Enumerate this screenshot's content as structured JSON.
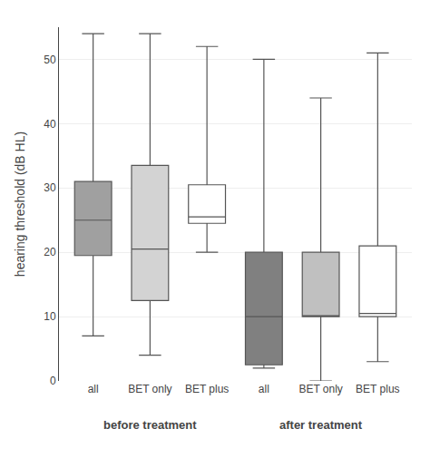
{
  "chart_data": {
    "type": "box",
    "ylabel": "hearing threshold (dB HL)",
    "categories": [
      "all",
      "BET only",
      "BET plus",
      "all",
      "BET only",
      "BET plus"
    ],
    "values": [
      {
        "whislo": 7,
        "q1": 19.5,
        "med": 25,
        "q3": 31,
        "whishi": 54
      },
      {
        "whislo": 4,
        "q1": 12.5,
        "med": 20.5,
        "q3": 33.5,
        "whishi": 54
      },
      {
        "whislo": 20,
        "q1": 24.5,
        "med": 25.5,
        "q3": 30.5,
        "whishi": 52
      },
      {
        "whislo": 2,
        "q1": 2.5,
        "med": 10,
        "q3": 20,
        "whishi": 50
      },
      {
        "whislo": 0,
        "q1": 10,
        "med": 10,
        "q3": 20,
        "whishi": 44
      },
      {
        "whislo": 3,
        "q1": 10,
        "med": 10.5,
        "q3": 21,
        "whishi": 51
      }
    ],
    "colors": [
      "#a0a0a0",
      "#d3d3d3",
      "#ffffff",
      "#808080",
      "#c0c0c0",
      "#ffffff"
    ],
    "color": "#555555",
    "annotations": [
      {
        "text": "before treatment",
        "x": 1
      },
      {
        "text": "after treatment",
        "x": 4
      }
    ],
    "ylim": [
      0,
      55
    ],
    "yticks": [
      0,
      10,
      20,
      30,
      40,
      50
    ],
    "grid": true
  }
}
